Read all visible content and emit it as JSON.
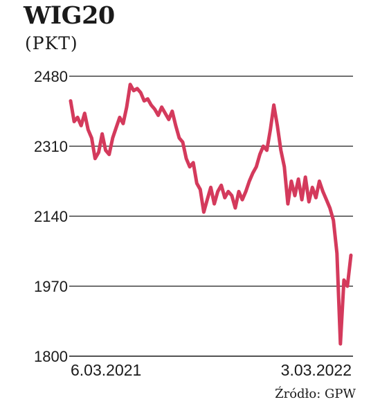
{
  "chart_data": {
    "type": "line",
    "title": "WIG20",
    "subtitle": "(PKT)",
    "source": "Źródło: GPW",
    "ylim": [
      1800,
      2480
    ],
    "yticks": [
      2480,
      2310,
      2140,
      1970,
      1800
    ],
    "grid": "horizontal",
    "x_labels": {
      "start": "6.03.2021",
      "end": "3.03.2022"
    },
    "line_color": "#d43a5c",
    "series": [
      {
        "values": [
          2420,
          2370,
          2380,
          2360,
          2390,
          2350,
          2330,
          2280,
          2295,
          2340,
          2300,
          2290,
          2330,
          2355,
          2380,
          2365,
          2405,
          2460,
          2445,
          2450,
          2440,
          2420,
          2425,
          2410,
          2400,
          2385,
          2405,
          2390,
          2375,
          2395,
          2360,
          2330,
          2320,
          2280,
          2260,
          2270,
          2220,
          2205,
          2150,
          2180,
          2210,
          2170,
          2200,
          2215,
          2185,
          2200,
          2190,
          2160,
          2200,
          2180,
          2200,
          2225,
          2245,
          2260,
          2290,
          2310,
          2300,
          2350,
          2410,
          2360,
          2300,
          2260,
          2170,
          2225,
          2190,
          2230,
          2180,
          2235,
          2175,
          2210,
          2185,
          2225,
          2200,
          2180,
          2160,
          2130,
          2050,
          1830,
          1985,
          1970,
          2045
        ]
      }
    ]
  }
}
